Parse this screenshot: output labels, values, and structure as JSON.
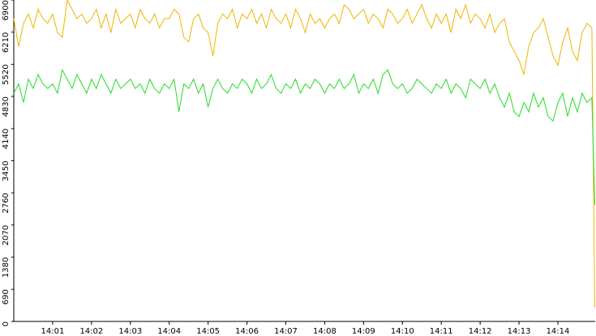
{
  "chart_data": {
    "type": "line",
    "x": [
      0,
      0.125,
      0.25,
      0.375,
      0.5,
      0.625,
      0.75,
      0.875,
      1,
      1.125,
      1.25,
      1.375,
      1.5,
      1.625,
      1.75,
      1.875,
      2,
      2.125,
      2.25,
      2.375,
      2.5,
      2.625,
      2.75,
      2.875,
      3,
      3.125,
      3.25,
      3.375,
      3.5,
      3.625,
      3.75,
      3.875,
      4,
      4.125,
      4.25,
      4.375,
      4.5,
      4.625,
      4.75,
      4.875,
      5,
      5.125,
      5.25,
      5.375,
      5.5,
      5.625,
      5.75,
      5.875,
      6,
      6.125,
      6.25,
      6.375,
      6.5,
      6.625,
      6.75,
      6.875,
      7,
      7.125,
      7.25,
      7.375,
      7.5,
      7.625,
      7.75,
      7.875,
      8,
      8.125,
      8.25,
      8.375,
      8.5,
      8.625,
      8.75,
      8.875,
      9,
      9.125,
      9.25,
      9.375,
      9.5,
      9.625,
      9.75,
      9.875,
      10,
      10.125,
      10.25,
      10.375,
      10.5,
      10.625,
      10.75,
      10.875,
      11,
      11.125,
      11.25,
      11.375,
      11.5,
      11.625,
      11.75,
      11.875,
      12,
      12.125,
      12.25,
      12.375,
      12.5,
      12.625,
      12.75,
      12.875,
      13,
      13.125,
      13.25,
      13.375,
      13.5,
      13.625,
      13.75,
      13.875,
      14,
      14.125,
      14.25,
      14.375,
      14.5,
      14.625,
      14.75,
      14.875,
      14.95
    ],
    "series": [
      {
        "color": "#f0b400",
        "values": [
          6500,
          5900,
          6400,
          6600,
          6300,
          6700,
          6500,
          6400,
          6600,
          6200,
          6100,
          6900,
          6700,
          6500,
          6600,
          6400,
          6500,
          6700,
          6300,
          6600,
          6200,
          6700,
          6400,
          6500,
          6600,
          6300,
          6700,
          6500,
          6400,
          6600,
          6300,
          6500,
          6500,
          6700,
          6600,
          6100,
          6000,
          6500,
          6600,
          6300,
          6200,
          5700,
          6400,
          6600,
          6500,
          6700,
          6300,
          6600,
          6500,
          6700,
          6400,
          6600,
          6300,
          6700,
          6500,
          6400,
          6600,
          6300,
          6700,
          6500,
          6200,
          6600,
          6400,
          6500,
          6300,
          6500,
          6600,
          6400,
          6800,
          6700,
          6500,
          6600,
          6700,
          6400,
          6600,
          6500,
          6300,
          6700,
          6600,
          6400,
          6500,
          6700,
          6400,
          6600,
          6800,
          6500,
          6300,
          6600,
          6400,
          6600,
          6200,
          6700,
          6500,
          6800,
          6400,
          6600,
          6500,
          6300,
          6600,
          6200,
          6400,
          6500,
          6000,
          5800,
          5600,
          5300,
          5900,
          6200,
          6300,
          6500,
          6100,
          5700,
          5500,
          6000,
          6300,
          5800,
          5600,
          6200,
          6400,
          6300,
          300
        ]
      },
      {
        "color": "#22dd22",
        "values": [
          4900,
          5100,
          4700,
          5200,
          5000,
          5300,
          5100,
          5000,
          5100,
          4900,
          5400,
          5200,
          5000,
          5300,
          5100,
          4900,
          5200,
          5000,
          5300,
          5100,
          4900,
          5200,
          5000,
          5100,
          5200,
          5000,
          5100,
          4900,
          5200,
          5000,
          4900,
          5100,
          5000,
          5200,
          4500,
          5100,
          5000,
          5200,
          4900,
          5100,
          4600,
          5000,
          5200,
          5000,
          4900,
          5100,
          5000,
          5200,
          5100,
          4900,
          5200,
          5000,
          5100,
          5300,
          5000,
          4900,
          5100,
          5000,
          5200,
          4900,
          5100,
          5000,
          5200,
          5100,
          4900,
          5100,
          5000,
          5200,
          5000,
          5100,
          5300,
          4900,
          5100,
          5000,
          5200,
          4900,
          5300,
          5400,
          5100,
          5000,
          5100,
          4900,
          5000,
          5200,
          5100,
          5000,
          4900,
          5100,
          5000,
          5200,
          4900,
          5100,
          5000,
          4800,
          5200,
          5100,
          5000,
          5200,
          4900,
          5100,
          4800,
          4600,
          4900,
          4500,
          4400,
          4700,
          4500,
          4900,
          4600,
          4800,
          4400,
          4300,
          4700,
          4900,
          4400,
          4800,
          4500,
          4900,
          4700,
          4800,
          2500
        ]
      }
    ],
    "xlim": [
      0,
      14.96
    ],
    "xticks": [
      {
        "value": 1,
        "label": "14:01"
      },
      {
        "value": 2,
        "label": "14:02"
      },
      {
        "value": 3,
        "label": "14:03"
      },
      {
        "value": 4,
        "label": "14:04"
      },
      {
        "value": 5,
        "label": "14:05"
      },
      {
        "value": 6,
        "label": "14:06"
      },
      {
        "value": 7,
        "label": "14:07"
      },
      {
        "value": 8,
        "label": "14:08"
      },
      {
        "value": 9,
        "label": "14:09"
      },
      {
        "value": 10,
        "label": "14:10"
      },
      {
        "value": 11,
        "label": "14:11"
      },
      {
        "value": 12,
        "label": "14:12"
      },
      {
        "value": 13,
        "label": "14:13"
      },
      {
        "value": 14,
        "label": "14:14"
      }
    ],
    "ylim": [
      0,
      6900
    ],
    "yticks": [
      0,
      690,
      1380,
      2070,
      2760,
      3450,
      4140,
      4830,
      5520,
      6210,
      6900
    ]
  }
}
